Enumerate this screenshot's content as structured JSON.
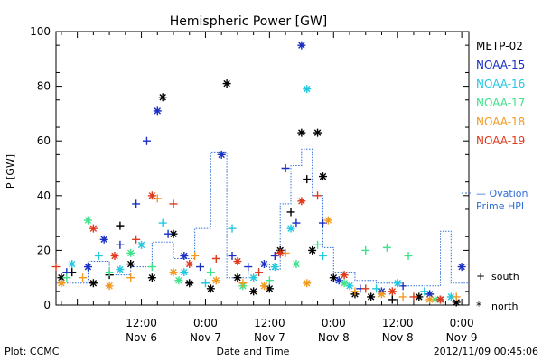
{
  "footer": {
    "plot_credit": "Plot: CCMC",
    "timestamp": "2012/11/09 00:45:06"
  },
  "chart_data": {
    "type": "scatter",
    "title": "Hemispheric Power [GW]",
    "xlabel": "Date and Time",
    "ylabel": "P [GW]",
    "xlim": [
      "2012-11-05T20:00",
      "2012-11-09T01:20"
    ],
    "ylim": [
      0,
      100
    ],
    "yticks": [
      0,
      20,
      40,
      60,
      80,
      100
    ],
    "xticks": [
      {
        "t": "2012-11-06T12:00",
        "time": "12:00",
        "date": "Nov 6"
      },
      {
        "t": "2012-11-07T00:00",
        "time": "0:00",
        "date": "Nov 7"
      },
      {
        "t": "2012-11-07T12:00",
        "time": "12:00",
        "date": "Nov 7"
      },
      {
        "t": "2012-11-08T00:00",
        "time": "0:00",
        "date": "Nov 8"
      },
      {
        "t": "2012-11-08T12:00",
        "time": "12:00",
        "date": "Nov 8"
      },
      {
        "t": "2012-11-09T00:00",
        "time": "0:00",
        "date": "Nov 9"
      }
    ],
    "legend": {
      "placement": "right",
      "markers": [
        {
          "symbol": "+",
          "label": "south"
        },
        {
          "symbol": "*",
          "label": "north"
        }
      ],
      "ovation_label_1": "— Ovation",
      "ovation_label_2": "Prime HPI"
    },
    "colors": {
      "METP-02": "#000000",
      "NOAA-15": "#1a2fc4",
      "NOAA-16": "#22c8e0",
      "NOAA-17": "#3fe28a",
      "NOAA-18": "#f29a20",
      "NOAA-19": "#e03a1c",
      "Ovation": "#2f6fd8"
    },
    "series": [
      {
        "name": "METP-02",
        "points": [
          [
            "2012-11-05T21:00",
            10,
            "*"
          ],
          [
            "2012-11-05T23:00",
            12,
            "+"
          ],
          [
            "2012-11-06T03:00",
            8,
            "*"
          ],
          [
            "2012-11-06T06:00",
            11,
            "+"
          ],
          [
            "2012-11-06T08:00",
            29,
            "+"
          ],
          [
            "2012-11-06T10:00",
            15,
            "*"
          ],
          [
            "2012-11-06T14:00",
            10,
            "*"
          ],
          [
            "2012-11-06T16:00",
            76,
            "*"
          ],
          [
            "2012-11-06T18:00",
            26,
            "*"
          ],
          [
            "2012-11-06T21:00",
            8,
            "*"
          ],
          [
            "2012-11-07T01:00",
            6,
            "*"
          ],
          [
            "2012-11-07T04:00",
            81,
            "*"
          ],
          [
            "2012-11-07T06:00",
            10,
            "*"
          ],
          [
            "2012-11-07T09:00",
            5,
            "*"
          ],
          [
            "2012-11-07T12:00",
            6,
            "*"
          ],
          [
            "2012-11-07T14:00",
            20,
            "*"
          ],
          [
            "2012-11-07T16:00",
            34,
            "+"
          ],
          [
            "2012-11-07T18:00",
            63,
            "*"
          ],
          [
            "2012-11-07T19:00",
            46,
            "+"
          ],
          [
            "2012-11-07T20:00",
            20,
            "*"
          ],
          [
            "2012-11-07T21:00",
            63,
            "*"
          ],
          [
            "2012-11-07T22:00",
            47,
            "*"
          ],
          [
            "2012-11-08T00:00",
            10,
            "*"
          ],
          [
            "2012-11-08T04:00",
            4,
            "*"
          ],
          [
            "2012-11-08T07:00",
            3,
            "*"
          ],
          [
            "2012-11-08T11:00",
            2,
            "+"
          ],
          [
            "2012-11-08T16:00",
            3,
            "*"
          ],
          [
            "2012-11-08T20:00",
            2,
            "*"
          ],
          [
            "2012-11-08T23:00",
            1,
            "*"
          ]
        ]
      },
      {
        "name": "NOAA-15",
        "points": [
          [
            "2012-11-05T22:00",
            12,
            "+"
          ],
          [
            "2012-11-06T02:00",
            14,
            "*"
          ],
          [
            "2012-11-06T05:00",
            24,
            "*"
          ],
          [
            "2012-11-06T08:00",
            22,
            "+"
          ],
          [
            "2012-11-06T11:00",
            37,
            "+"
          ],
          [
            "2012-11-06T13:00",
            60,
            "+"
          ],
          [
            "2012-11-06T15:00",
            71,
            "*"
          ],
          [
            "2012-11-06T17:00",
            26,
            "+"
          ],
          [
            "2012-11-06T20:00",
            18,
            "*"
          ],
          [
            "2012-11-06T23:00",
            14,
            "+"
          ],
          [
            "2012-11-07T03:00",
            55,
            "*"
          ],
          [
            "2012-11-07T05:00",
            18,
            "+"
          ],
          [
            "2012-11-07T08:00",
            14,
            "+"
          ],
          [
            "2012-11-07T11:00",
            15,
            "*"
          ],
          [
            "2012-11-07T13:00",
            18,
            "+"
          ],
          [
            "2012-11-07T15:00",
            50,
            "+"
          ],
          [
            "2012-11-07T17:00",
            30,
            "+"
          ],
          [
            "2012-11-07T18:00",
            95,
            "*"
          ],
          [
            "2012-11-07T22:00",
            30,
            "+"
          ],
          [
            "2012-11-08T01:00",
            9,
            "*"
          ],
          [
            "2012-11-08T05:00",
            6,
            "+"
          ],
          [
            "2012-11-08T09:00",
            5,
            "*"
          ],
          [
            "2012-11-08T13:00",
            7,
            "+"
          ],
          [
            "2012-11-08T18:00",
            4,
            "*"
          ],
          [
            "2012-11-09T00:00",
            14,
            "*"
          ]
        ]
      },
      {
        "name": "NOAA-16",
        "points": [
          [
            "2012-11-05T23:00",
            15,
            "*"
          ],
          [
            "2012-11-06T04:00",
            18,
            "+"
          ],
          [
            "2012-11-06T08:00",
            13,
            "*"
          ],
          [
            "2012-11-06T12:00",
            22,
            "*"
          ],
          [
            "2012-11-06T16:00",
            30,
            "+"
          ],
          [
            "2012-11-06T20:00",
            12,
            "*"
          ],
          [
            "2012-11-07T00:00",
            8,
            "+"
          ],
          [
            "2012-11-07T05:00",
            28,
            "+"
          ],
          [
            "2012-11-07T09:00",
            10,
            "*"
          ],
          [
            "2012-11-07T13:00",
            14,
            "*"
          ],
          [
            "2012-11-07T16:00",
            28,
            "*"
          ],
          [
            "2012-11-07T19:00",
            79,
            "*"
          ],
          [
            "2012-11-07T22:00",
            18,
            "+"
          ],
          [
            "2012-11-08T03:00",
            7,
            "*"
          ],
          [
            "2012-11-08T08:00",
            6,
            "+"
          ],
          [
            "2012-11-08T12:00",
            8,
            "*"
          ],
          [
            "2012-11-08T17:00",
            5,
            "+"
          ],
          [
            "2012-11-08T22:00",
            3,
            "*"
          ]
        ]
      },
      {
        "name": "NOAA-17",
        "points": [
          [
            "2012-11-05T22:00",
            10,
            "+"
          ],
          [
            "2012-11-06T02:00",
            31,
            "*"
          ],
          [
            "2012-11-06T06:00",
            12,
            "+"
          ],
          [
            "2012-11-06T10:00",
            19,
            "*"
          ],
          [
            "2012-11-06T14:00",
            14,
            "+"
          ],
          [
            "2012-11-06T19:00",
            9,
            "*"
          ],
          [
            "2012-11-07T01:00",
            12,
            "+"
          ],
          [
            "2012-11-07T07:00",
            7,
            "*"
          ],
          [
            "2012-11-07T12:00",
            9,
            "+"
          ],
          [
            "2012-11-07T17:00",
            15,
            "*"
          ],
          [
            "2012-11-07T21:00",
            22,
            "+"
          ],
          [
            "2012-11-08T02:00",
            8,
            "*"
          ],
          [
            "2012-11-08T06:00",
            20,
            "+"
          ],
          [
            "2012-11-08T10:00",
            21,
            "+"
          ],
          [
            "2012-11-08T14:00",
            18,
            "+"
          ],
          [
            "2012-11-08T19:00",
            2,
            "*"
          ]
        ]
      },
      {
        "name": "NOAA-18",
        "points": [
          [
            "2012-11-05T21:00",
            8,
            "*"
          ],
          [
            "2012-11-06T01:00",
            10,
            "+"
          ],
          [
            "2012-11-06T06:00",
            7,
            "*"
          ],
          [
            "2012-11-06T10:00",
            10,
            "+"
          ],
          [
            "2012-11-06T15:00",
            39,
            "+"
          ],
          [
            "2012-11-06T18:00",
            12,
            "*"
          ],
          [
            "2012-11-06T22:00",
            18,
            "+"
          ],
          [
            "2012-11-07T02:00",
            9,
            "*"
          ],
          [
            "2012-11-07T07:00",
            8,
            "+"
          ],
          [
            "2012-11-07T11:00",
            7,
            "*"
          ],
          [
            "2012-11-07T15:00",
            19,
            "+"
          ],
          [
            "2012-11-07T19:00",
            8,
            "*"
          ],
          [
            "2012-11-07T23:00",
            31,
            "*"
          ],
          [
            "2012-11-08T04:00",
            5,
            "+"
          ],
          [
            "2012-11-08T09:00",
            4,
            "*"
          ],
          [
            "2012-11-08T13:00",
            3,
            "+"
          ],
          [
            "2012-11-08T18:00",
            2,
            "*"
          ],
          [
            "2012-11-08T23:00",
            3,
            "+"
          ]
        ]
      },
      {
        "name": "NOAA-19",
        "points": [
          [
            "2012-11-05T20:00",
            14,
            "+"
          ],
          [
            "2012-11-06T03:00",
            28,
            "*"
          ],
          [
            "2012-11-06T07:00",
            18,
            "*"
          ],
          [
            "2012-11-06T11:00",
            24,
            "+"
          ],
          [
            "2012-11-06T14:00",
            40,
            "*"
          ],
          [
            "2012-11-06T18:00",
            37,
            "+"
          ],
          [
            "2012-11-06T21:00",
            15,
            "*"
          ],
          [
            "2012-11-07T02:00",
            17,
            "+"
          ],
          [
            "2012-11-07T06:00",
            16,
            "*"
          ],
          [
            "2012-11-07T10:00",
            12,
            "+"
          ],
          [
            "2012-11-07T14:00",
            19,
            "*"
          ],
          [
            "2012-11-07T18:00",
            38,
            "*"
          ],
          [
            "2012-11-07T21:00",
            40,
            "+"
          ],
          [
            "2012-11-08T02:00",
            11,
            "*"
          ],
          [
            "2012-11-08T06:00",
            6,
            "+"
          ],
          [
            "2012-11-08T11:00",
            5,
            "*"
          ],
          [
            "2012-11-08T15:00",
            3,
            "+"
          ],
          [
            "2012-11-08T20:00",
            2,
            "*"
          ]
        ]
      },
      {
        "name": "Ovation",
        "step": [
          [
            "2012-11-05T20:00",
            8
          ],
          [
            "2012-11-06T02:00",
            16
          ],
          [
            "2012-11-06T06:00",
            11
          ],
          [
            "2012-11-06T10:00",
            14
          ],
          [
            "2012-11-06T14:00",
            23
          ],
          [
            "2012-11-06T18:00",
            17
          ],
          [
            "2012-11-06T22:00",
            28
          ],
          [
            "2012-11-07T01:00",
            56
          ],
          [
            "2012-11-07T04:00",
            10
          ],
          [
            "2012-11-07T08:00",
            15
          ],
          [
            "2012-11-07T12:00",
            13
          ],
          [
            "2012-11-07T14:00",
            37
          ],
          [
            "2012-11-07T16:00",
            51
          ],
          [
            "2012-11-07T18:00",
            57
          ],
          [
            "2012-11-07T20:00",
            40
          ],
          [
            "2012-11-07T22:00",
            21
          ],
          [
            "2012-11-08T00:00",
            12
          ],
          [
            "2012-11-08T04:00",
            9
          ],
          [
            "2012-11-08T08:00",
            8
          ],
          [
            "2012-11-08T12:00",
            7
          ],
          [
            "2012-11-08T16:00",
            7
          ],
          [
            "2012-11-08T20:00",
            27
          ],
          [
            "2012-11-08T22:00",
            8
          ],
          [
            "2012-11-09T01:20",
            8
          ]
        ]
      }
    ]
  }
}
